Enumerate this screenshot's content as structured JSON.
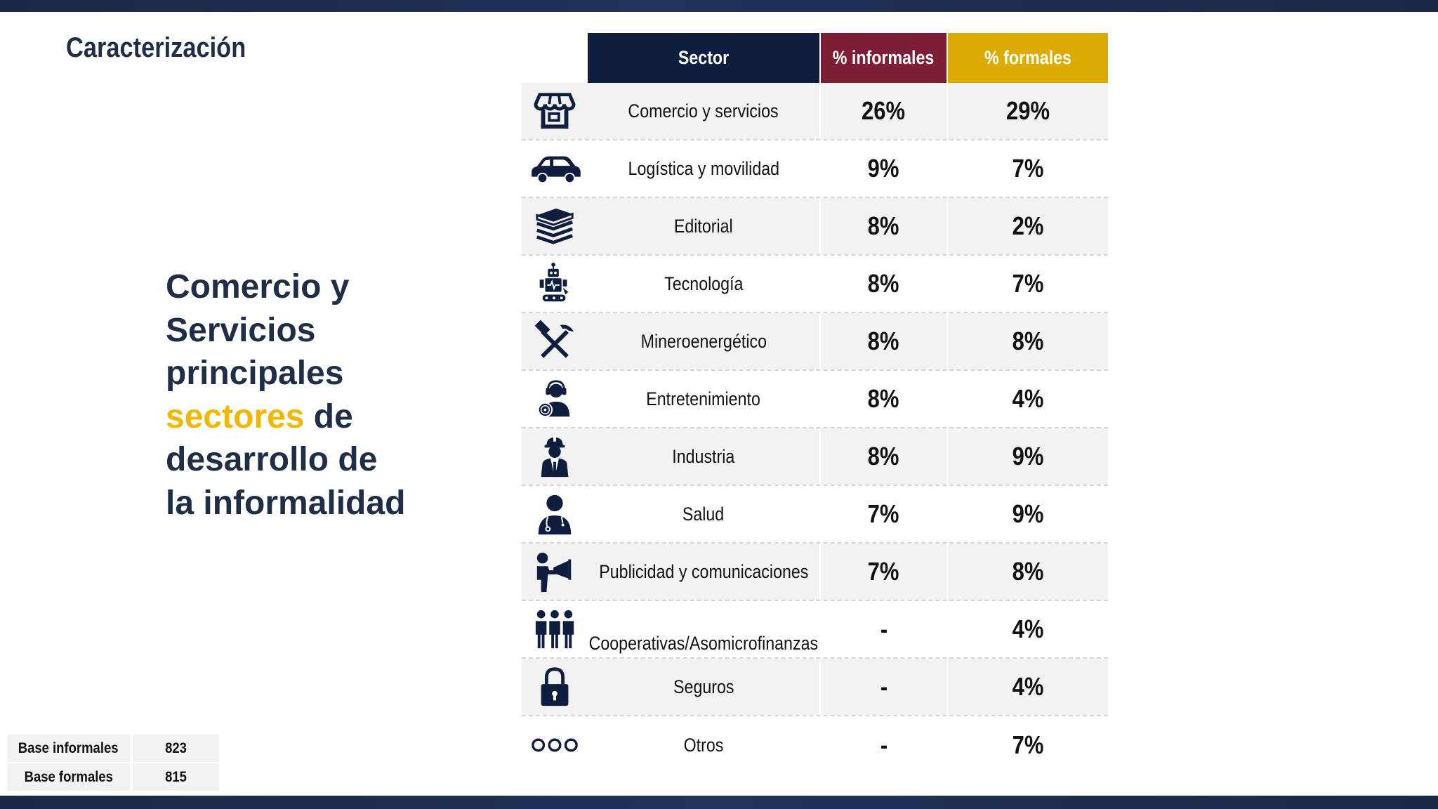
{
  "page": {
    "title": "Caracterización",
    "headline": {
      "line1": "Comercio y",
      "line2": "Servicios",
      "line3": "principales",
      "highlight": "sectores",
      "line4_rest": " de",
      "line5": "desarrollo de",
      "line6": "la informalidad"
    }
  },
  "colors": {
    "navy": "#0f1d3f",
    "maroon": "#7e1e36",
    "gold": "#dcab06",
    "accent_text": "#f2b705",
    "title_text": "#1f2d47"
  },
  "table": {
    "headers": {
      "sector": "Sector",
      "informales": "% informales",
      "formales": "% formales"
    },
    "rows": [
      {
        "icon": "store-icon",
        "sector": "Comercio y servicios",
        "informales": "26%",
        "formales": "29%"
      },
      {
        "icon": "car-icon",
        "sector": "Logística y movilidad",
        "informales": "9%",
        "formales": "7%"
      },
      {
        "icon": "books-icon",
        "sector": "Editorial",
        "informales": "8%",
        "formales": "2%"
      },
      {
        "icon": "robot-icon",
        "sector": "Tecnología",
        "informales": "8%",
        "formales": "7%"
      },
      {
        "icon": "hammer-pick-icon",
        "sector": "Mineroenergético",
        "informales": "8%",
        "formales": "8%"
      },
      {
        "icon": "dj-headphones-icon",
        "sector": "Entretenimiento",
        "informales": "8%",
        "formales": "4%"
      },
      {
        "icon": "worker-hardhat-icon",
        "sector": "Industria",
        "informales": "8%",
        "formales": "9%"
      },
      {
        "icon": "doctor-icon",
        "sector": "Salud",
        "informales": "7%",
        "formales": "9%"
      },
      {
        "icon": "megaphone-person-icon",
        "sector": "Publicidad y comunicaciones",
        "informales": "7%",
        "formales": "8%"
      },
      {
        "icon": "group-people-icon",
        "sector": "Cooperativas/Asomicrofinanzas",
        "informales": "-",
        "formales": "4%"
      },
      {
        "icon": "lock-icon",
        "sector": "Seguros",
        "informales": "-",
        "formales": "4%"
      },
      {
        "icon": "three-circles-icon",
        "sector": "Otros",
        "informales": "-",
        "formales": "7%"
      }
    ]
  },
  "base": {
    "informales_label": "Base informales",
    "informales_value": "823",
    "formales_label": "Base formales",
    "formales_value": "815"
  }
}
